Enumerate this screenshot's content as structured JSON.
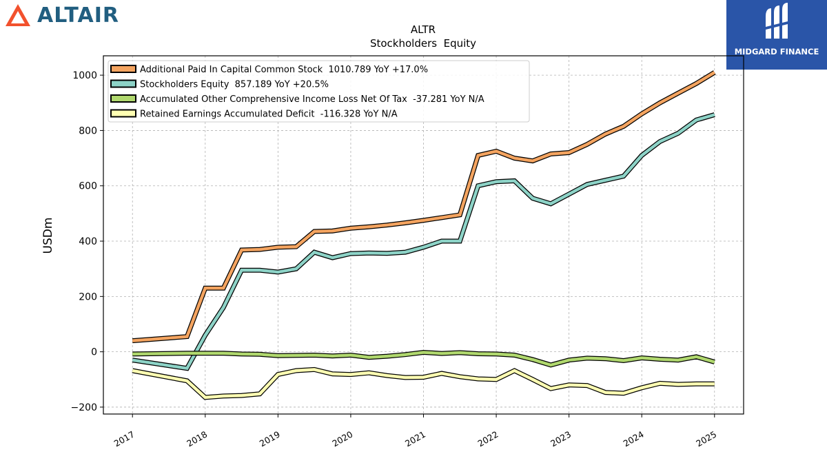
{
  "branding": {
    "left_logo_text": "ALTAIR",
    "right_logo_text": "MIDGARD FINANCE",
    "right_logo_bg": "#2a55a8",
    "left_logo_color": "#215e80",
    "left_logo_icon_color": "#f2512d"
  },
  "chart_data": {
    "type": "line",
    "title": "ALTR",
    "subtitle": "Stockholders  Equity",
    "ylabel": "USDm",
    "xlabel": "",
    "ylim": [
      -225,
      1070
    ],
    "xlim": [
      2016.6,
      2025.4
    ],
    "yticks": [
      -200,
      0,
      200,
      400,
      600,
      800,
      1000
    ],
    "ytick_labels": [
      "−200",
      "0",
      "200",
      "400",
      "600",
      "800",
      "1000"
    ],
    "xticks": [
      2017,
      2018,
      2019,
      2020,
      2021,
      2022,
      2023,
      2024,
      2025
    ],
    "xtick_labels": [
      "2017",
      "2018",
      "2019",
      "2020",
      "2021",
      "2022",
      "2023",
      "2024",
      "2025"
    ],
    "grid": true,
    "legend_position": "top-left",
    "x": [
      2017.0,
      2017.75,
      2018.0,
      2018.25,
      2018.5,
      2018.75,
      2019.0,
      2019.25,
      2019.5,
      2019.75,
      2020.0,
      2020.25,
      2020.5,
      2020.75,
      2021.0,
      2021.25,
      2021.5,
      2021.75,
      2022.0,
      2022.25,
      2022.5,
      2022.75,
      2023.0,
      2023.25,
      2023.5,
      2023.75,
      2024.0,
      2024.25,
      2024.5,
      2024.75,
      2025.0
    ],
    "series": [
      {
        "name": "Additional Paid In Capital Common Stock  1010.789 YoY +17.0%",
        "color": "#f4a460",
        "values": [
          40,
          55,
          230,
          230,
          368,
          370,
          378,
          380,
          435,
          437,
          447,
          452,
          458,
          466,
          475,
          485,
          495,
          710,
          725,
          700,
          690,
          715,
          720,
          750,
          787,
          815,
          860,
          900,
          935,
          970,
          1010
        ]
      },
      {
        "name": "Stockholders Equity  857.189 YoY +20.5%",
        "color": "#8dd3c7",
        "values": [
          -30,
          -60,
          60,
          160,
          295,
          295,
          288,
          300,
          360,
          340,
          355,
          357,
          356,
          360,
          378,
          400,
          400,
          600,
          615,
          618,
          555,
          535,
          570,
          605,
          620,
          635,
          710,
          760,
          790,
          838,
          857
        ]
      },
      {
        "name": "Accumulated Other Comprehensive Income Loss Net Of Tax  -37.281 YoY N/A",
        "color": "#b0d86e",
        "values": [
          -8,
          -5,
          -5,
          -5,
          -8,
          -9,
          -14,
          -13,
          -12,
          -15,
          -12,
          -20,
          -16,
          -10,
          -2,
          -6,
          -3,
          -7,
          -8,
          -12,
          -28,
          -48,
          -30,
          -23,
          -25,
          -32,
          -22,
          -27,
          -30,
          -18,
          -37
        ]
      },
      {
        "name": "Retained Earnings Accumulated Deficit  -116.328 YoY N/A",
        "color": "#ffffb3",
        "values": [
          -68,
          -105,
          -165,
          -160,
          -158,
          -152,
          -82,
          -68,
          -64,
          -80,
          -82,
          -76,
          -86,
          -93,
          -92,
          -78,
          -90,
          -98,
          -100,
          -68,
          -100,
          -133,
          -120,
          -122,
          -147,
          -150,
          -130,
          -114,
          -118,
          -116,
          -116
        ]
      }
    ]
  }
}
